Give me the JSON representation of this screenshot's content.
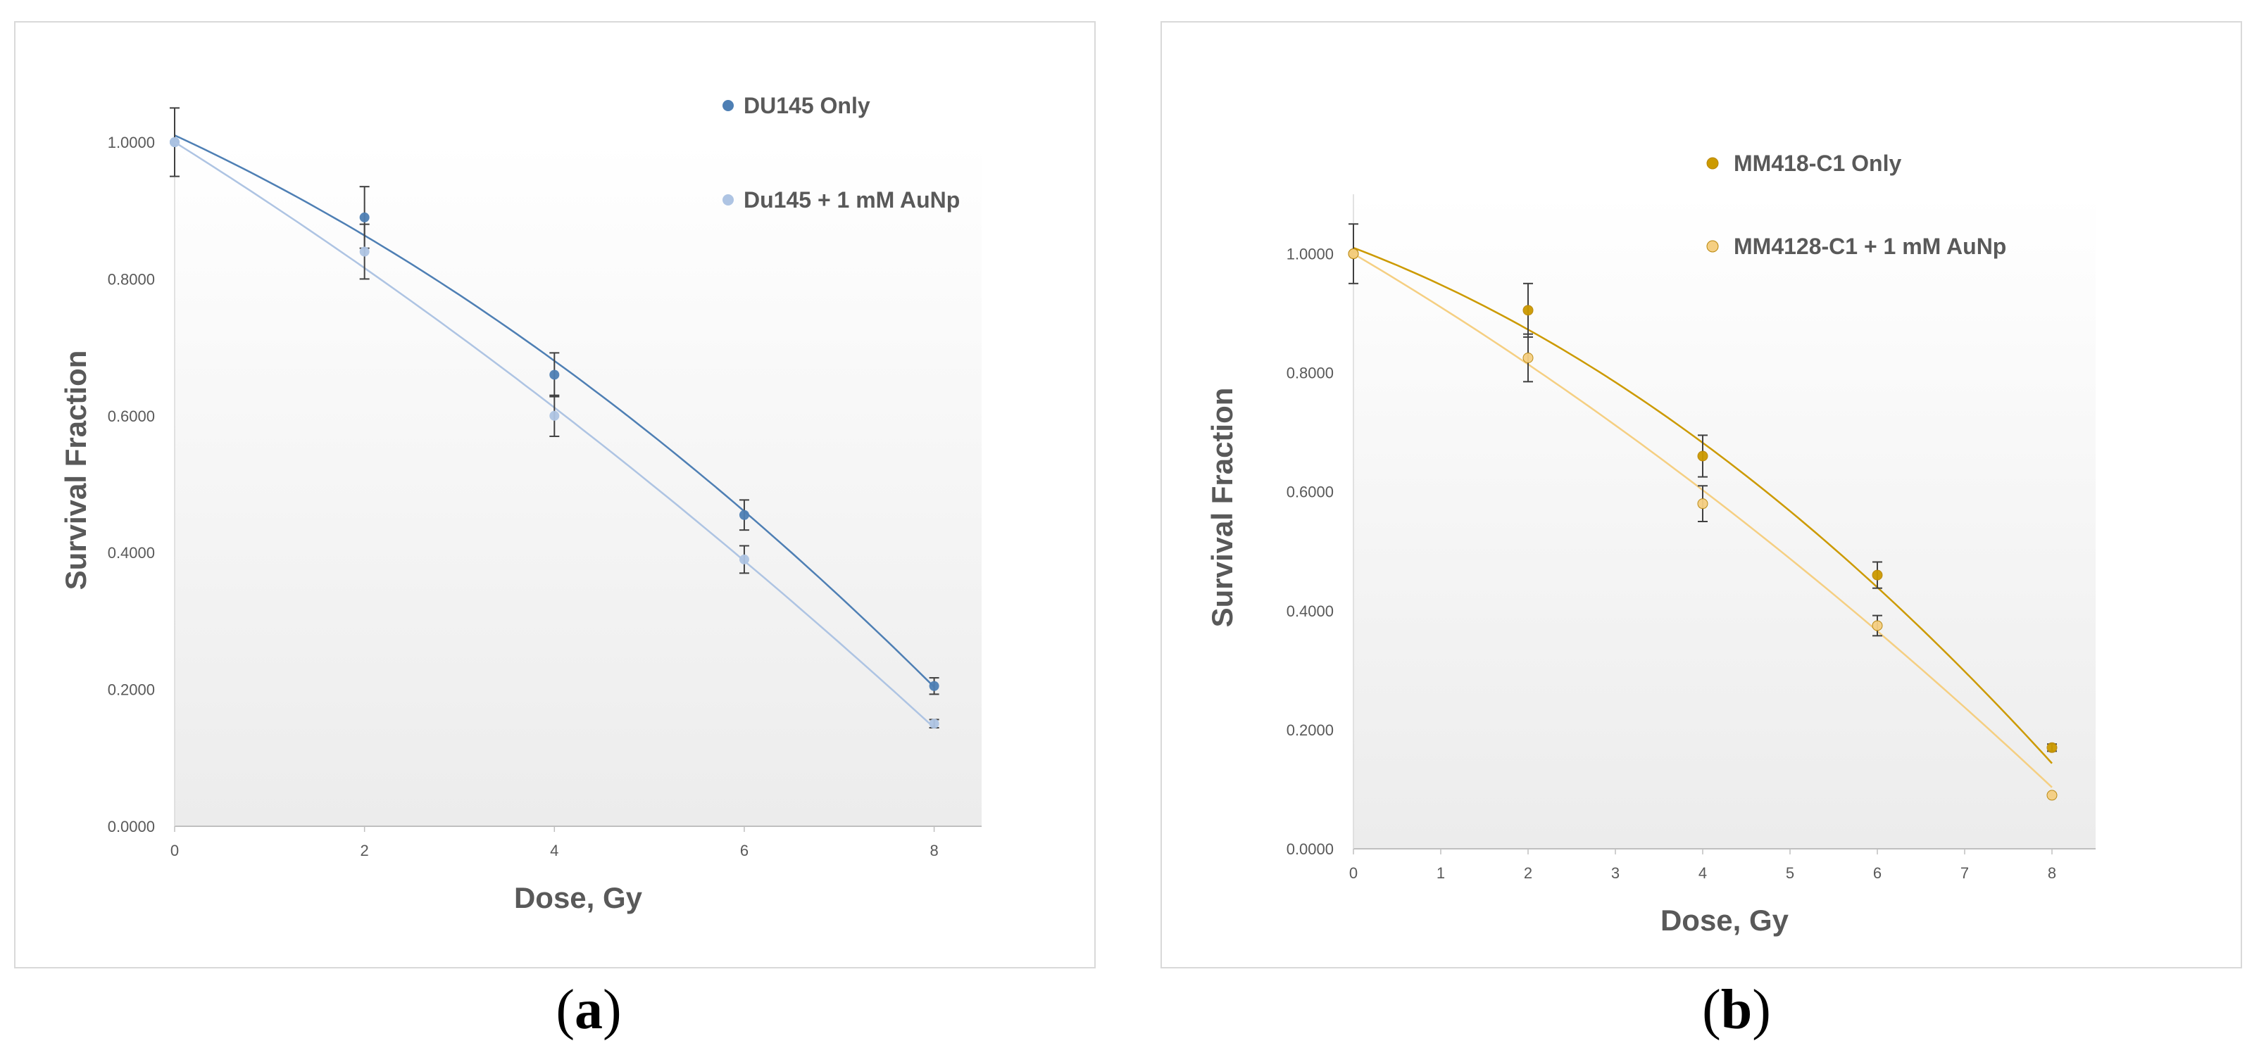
{
  "chart_data": [
    {
      "id": "a",
      "type": "scatter",
      "panel_label": "a",
      "xlabel": "Dose, Gy",
      "ylabel": "Survival Fraction",
      "xlim": [
        0,
        8.5
      ],
      "ylim": [
        0,
        1.0
      ],
      "xticks": [
        0,
        2,
        4,
        6,
        8
      ],
      "xtick_labels": [
        "0",
        "2",
        "4",
        "6",
        "8"
      ],
      "yticks": [
        0,
        0.2,
        0.4,
        0.6,
        0.8,
        1.0
      ],
      "ytick_labels": [
        "0.0000",
        "0.2000",
        "0.4000",
        "0.6000",
        "0.8000",
        "1.0000"
      ],
      "grid": false,
      "legend_position": "top-right",
      "series": [
        {
          "name": "DU145 Only",
          "color": "#4e7fb4",
          "x": [
            0,
            2,
            4,
            6,
            8
          ],
          "y": [
            1.0,
            0.89,
            0.66,
            0.455,
            0.205
          ],
          "err": [
            0.05,
            0.045,
            0.032,
            0.022,
            0.012
          ],
          "fit": [
            1.01,
            -0.064,
            -0.0046
          ]
        },
        {
          "name": "Du145 + 1 mM AuNp",
          "color": "#aec4e3",
          "x": [
            0,
            2,
            4,
            6,
            8
          ],
          "y": [
            1.0,
            0.84,
            0.6,
            0.39,
            0.15
          ],
          "err": [
            0.0,
            0.04,
            0.03,
            0.02,
            0.006
          ],
          "fit": [
            1.0,
            -0.087,
            -0.0025
          ]
        }
      ]
    },
    {
      "id": "b",
      "type": "scatter",
      "panel_label": "b",
      "xlabel": "Dose, Gy",
      "ylabel": "Survival Fraction",
      "xlim": [
        0,
        8.5
      ],
      "ylim": [
        0,
        1.1
      ],
      "xticks": [
        0,
        1,
        2,
        3,
        4,
        5,
        6,
        7,
        8
      ],
      "xtick_labels": [
        "0",
        "1",
        "2",
        "3",
        "4",
        "5",
        "6",
        "7",
        "8"
      ],
      "yticks": [
        0,
        0.2,
        0.4,
        0.6,
        0.8,
        1.0
      ],
      "ytick_labels": [
        "0.0000",
        "0.2000",
        "0.4000",
        "0.6000",
        "0.8000",
        "1.0000"
      ],
      "grid": false,
      "legend_position": "top-right",
      "series": [
        {
          "name": "MM418-C1 Only",
          "color": "#cc9a00",
          "x": [
            0,
            2,
            4,
            6,
            8
          ],
          "y": [
            1.0,
            0.905,
            0.66,
            0.46,
            0.17
          ],
          "err": [
            0.05,
            0.045,
            0.035,
            0.022,
            0.006
          ],
          "fit": [
            1.01,
            -0.0555,
            -0.0066
          ]
        },
        {
          "name": "MM4128-C1 + 1 mM AuNp",
          "color": "#f5cf82",
          "x": [
            0,
            2,
            4,
            6,
            8
          ],
          "y": [
            1.0,
            0.825,
            0.58,
            0.375,
            0.09
          ],
          "err": [
            0.0,
            0.04,
            0.03,
            0.017,
            0.0
          ],
          "fit": [
            1.0,
            -0.0865,
            -0.0032
          ]
        }
      ]
    }
  ]
}
